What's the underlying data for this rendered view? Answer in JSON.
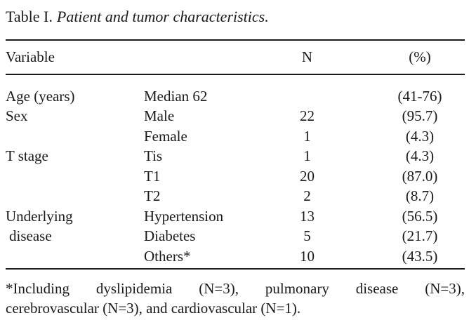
{
  "title": {
    "prefix": "Table I.",
    "italic": "Patient and tumor characteristics."
  },
  "table": {
    "headers": {
      "variable": "Variable",
      "n": "N",
      "pct": "(%)"
    },
    "rows": [
      {
        "category": "Age (years)",
        "label": "Median 62",
        "n": "",
        "pct": "(41-76)"
      },
      {
        "category": "Sex",
        "label": "Male",
        "n": "22",
        "pct": "(95.7)"
      },
      {
        "category": "",
        "label": "Female",
        "n": "1",
        "pct": "(4.3)"
      },
      {
        "category": "T stage",
        "label": "Tis",
        "n": "1",
        "pct": "(4.3)"
      },
      {
        "category": "",
        "label": "T1",
        "n": "20",
        "pct": "(87.0)"
      },
      {
        "category": "",
        "label": "T2",
        "n": "2",
        "pct": "(8.7)"
      },
      {
        "category": "Underlying",
        "label": "Hypertension",
        "n": "13",
        "pct": "(56.5)"
      },
      {
        "category": "disease",
        "label": "Diabetes",
        "n": "5",
        "pct": "(21.7)"
      },
      {
        "category": "",
        "label": "Others*",
        "n": "10",
        "pct": "(43.5)"
      }
    ]
  },
  "footnote": {
    "line1_words": [
      "*Including",
      "dyslipidemia",
      "(N=3),",
      "pulmonary",
      "disease",
      "(N=3),"
    ],
    "line2": "cerebrovascular (N=3), and cardiovascular (N=1)."
  },
  "colors": {
    "text": "#1b1b1b",
    "rule": "#1a1a1a",
    "background": "#fefefe"
  }
}
